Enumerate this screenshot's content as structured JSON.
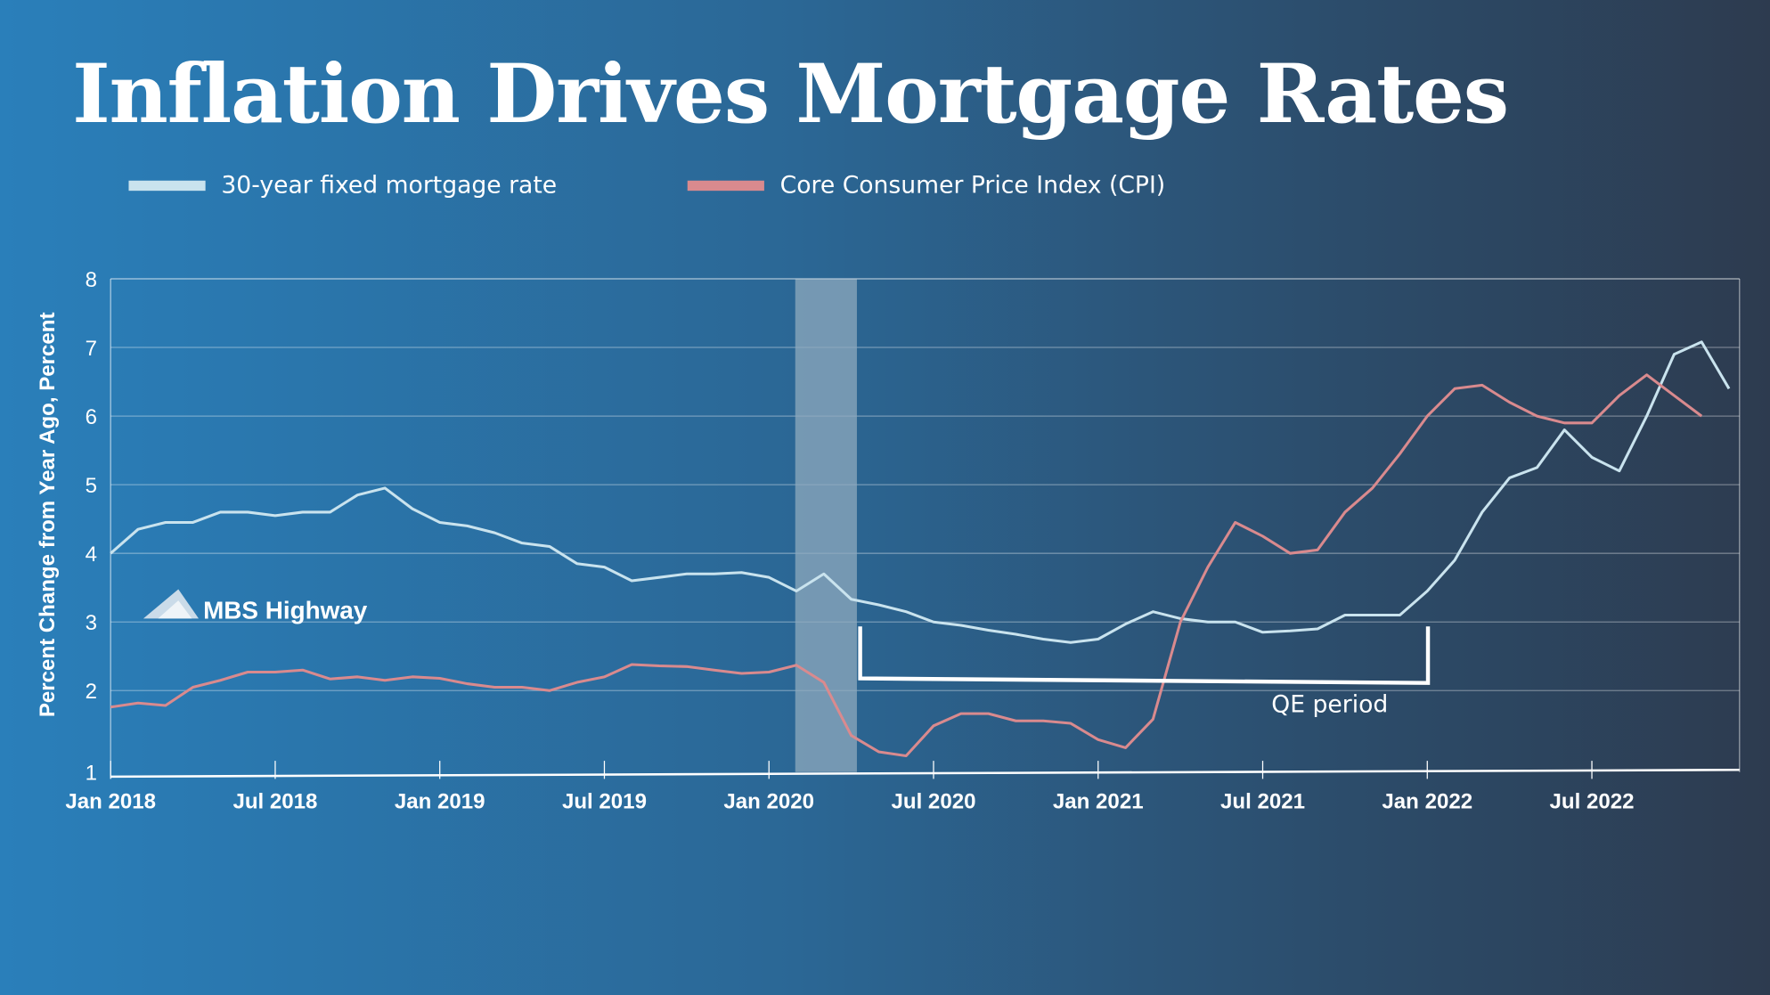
{
  "title": "Inflation Drives Mortgage Rates",
  "logo_text": "MBS Highway",
  "chart_data": {
    "type": "line",
    "title": "Inflation Drives Mortgage Rates",
    "ylabel": "Percent Change from Year Ago, Percent",
    "xlabel": "",
    "ylim": [
      1,
      8
    ],
    "yticks": [
      "1",
      "2",
      "3",
      "4",
      "5",
      "6",
      "7",
      "8"
    ],
    "xticks": [
      {
        "date": "2018-01",
        "label": "Jan 2018"
      },
      {
        "date": "2018-07",
        "label": "Jul 2018"
      },
      {
        "date": "2019-01",
        "label": "Jan 2019"
      },
      {
        "date": "2019-07",
        "label": "Jul 2019"
      },
      {
        "date": "2020-01",
        "label": "Jan 2020"
      },
      {
        "date": "2020-07",
        "label": "Jul 2020"
      },
      {
        "date": "2021-01",
        "label": "Jan 2021"
      },
      {
        "date": "2021-07",
        "label": "Jul 2021"
      },
      {
        "date": "2022-01",
        "label": "Jan 2022"
      },
      {
        "date": "2022-07",
        "label": "Jul 2022"
      }
    ],
    "grid": true,
    "legend_position": "top",
    "recession_shading": {
      "start": "2020-02",
      "end": "2020-04",
      "color": "#8fa9bd"
    },
    "annotation": {
      "label": "QE period",
      "start": "2020-03",
      "end": "2022-01"
    },
    "series": [
      {
        "name": "30-year fixed mortgage rate",
        "color": "#c9e3ee",
        "x": [
          "2018-01",
          "2018-02",
          "2018-03",
          "2018-04",
          "2018-05",
          "2018-06",
          "2018-07",
          "2018-08",
          "2018-09",
          "2018-10",
          "2018-11",
          "2018-12",
          "2019-01",
          "2019-02",
          "2019-03",
          "2019-04",
          "2019-05",
          "2019-06",
          "2019-07",
          "2019-08",
          "2019-09",
          "2019-10",
          "2019-11",
          "2019-12",
          "2020-01",
          "2020-02",
          "2020-03",
          "2020-04",
          "2020-05",
          "2020-06",
          "2020-07",
          "2020-08",
          "2020-09",
          "2020-10",
          "2020-11",
          "2020-12",
          "2021-01",
          "2021-02",
          "2021-03",
          "2021-04",
          "2021-05",
          "2021-06",
          "2021-07",
          "2021-08",
          "2021-09",
          "2021-10",
          "2021-11",
          "2021-12",
          "2022-01",
          "2022-02",
          "2022-03",
          "2022-04",
          "2022-05",
          "2022-06",
          "2022-07",
          "2022-08",
          "2022-09",
          "2022-10",
          "2022-11",
          "2022-12"
        ],
        "values": [
          4.0,
          4.35,
          4.45,
          4.45,
          4.6,
          4.6,
          4.55,
          4.6,
          4.6,
          4.85,
          4.95,
          4.65,
          4.45,
          4.4,
          4.3,
          4.15,
          4.1,
          3.85,
          3.8,
          3.6,
          3.65,
          3.7,
          3.7,
          3.72,
          3.65,
          3.45,
          3.7,
          3.33,
          3.25,
          3.15,
          3.0,
          2.95,
          2.88,
          2.82,
          2.75,
          2.7,
          2.75,
          2.97,
          3.15,
          3.05,
          3.0,
          3.0,
          2.85,
          2.87,
          2.9,
          3.1,
          3.1,
          3.1,
          3.45,
          3.9,
          4.6,
          5.1,
          5.25,
          5.8,
          5.4,
          5.2,
          6.0,
          6.9,
          7.08,
          6.4
        ]
      },
      {
        "name": "Core Consumer Price Index (CPI)",
        "color": "#d98a8e",
        "x": [
          "2018-01",
          "2018-02",
          "2018-03",
          "2018-04",
          "2018-05",
          "2018-06",
          "2018-07",
          "2018-08",
          "2018-09",
          "2018-10",
          "2018-11",
          "2018-12",
          "2019-01",
          "2019-02",
          "2019-03",
          "2019-04",
          "2019-05",
          "2019-06",
          "2019-07",
          "2019-08",
          "2019-09",
          "2019-10",
          "2019-11",
          "2019-12",
          "2020-01",
          "2020-02",
          "2020-03",
          "2020-04",
          "2020-05",
          "2020-06",
          "2020-07",
          "2020-08",
          "2020-09",
          "2020-10",
          "2020-11",
          "2020-12",
          "2021-01",
          "2021-02",
          "2021-03",
          "2021-04",
          "2021-05",
          "2021-06",
          "2021-07",
          "2021-08",
          "2021-09",
          "2021-10",
          "2021-11",
          "2021-12",
          "2022-01",
          "2022-02",
          "2022-03",
          "2022-04",
          "2022-05",
          "2022-06",
          "2022-07",
          "2022-08",
          "2022-09",
          "2022-10",
          "2022-11"
        ],
        "values": [
          1.8,
          1.85,
          1.82,
          2.05,
          2.15,
          2.27,
          2.27,
          2.3,
          2.17,
          2.2,
          2.15,
          2.2,
          2.18,
          2.1,
          2.05,
          2.05,
          2.0,
          2.12,
          2.2,
          2.38,
          2.36,
          2.35,
          2.3,
          2.25,
          2.27,
          2.37,
          2.12,
          1.45,
          1.25,
          1.2,
          1.57,
          1.72,
          1.72,
          1.63,
          1.63,
          1.6,
          1.4,
          1.3,
          1.65,
          3.0,
          3.8,
          4.45,
          4.25,
          4.0,
          4.05,
          4.6,
          4.95,
          5.45,
          6.0,
          6.4,
          6.45,
          6.2,
          6.0,
          5.9,
          5.9,
          6.3,
          6.6,
          6.3,
          6.0
        ]
      }
    ]
  }
}
